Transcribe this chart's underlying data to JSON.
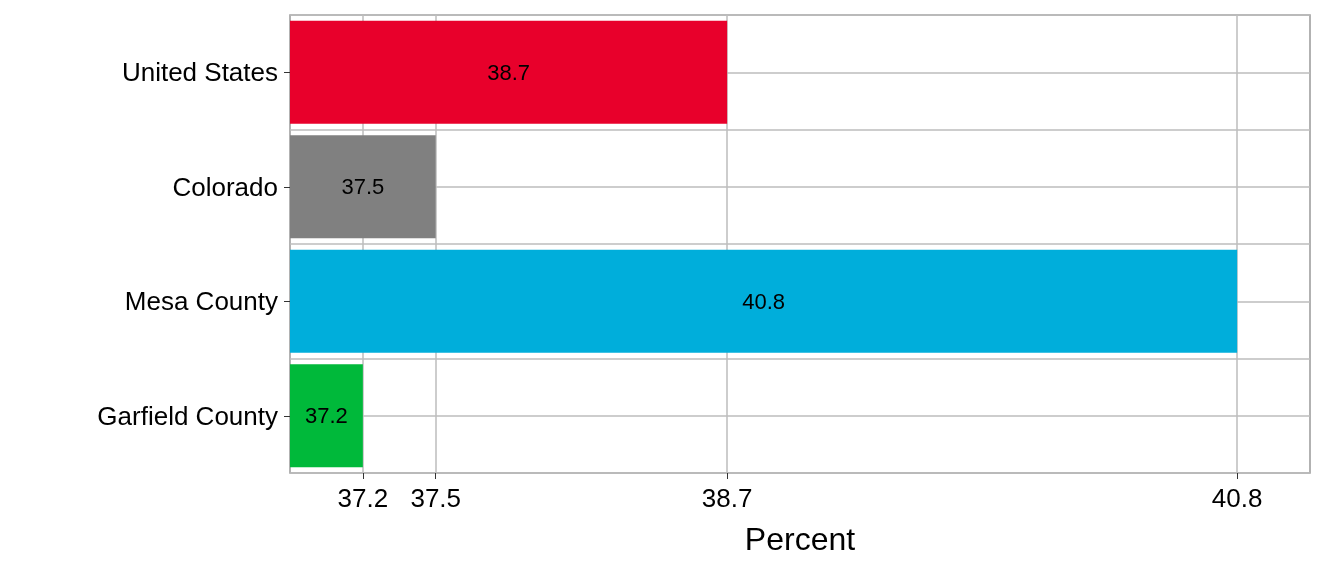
{
  "chart_data": {
    "type": "bar",
    "orientation": "horizontal",
    "xlabel": "Percent",
    "categories": [
      "United States",
      "Colorado",
      "Mesa County",
      "Garfield County"
    ],
    "values": [
      38.7,
      37.5,
      40.8,
      37.2
    ],
    "colors": [
      "#e8002b",
      "#808080",
      "#00aedb",
      "#00b93a"
    ],
    "xlim": [
      36.9,
      41.1
    ],
    "xticks": [
      37.2,
      37.5,
      38.7,
      40.8
    ],
    "data_labels": true,
    "grid": true
  }
}
